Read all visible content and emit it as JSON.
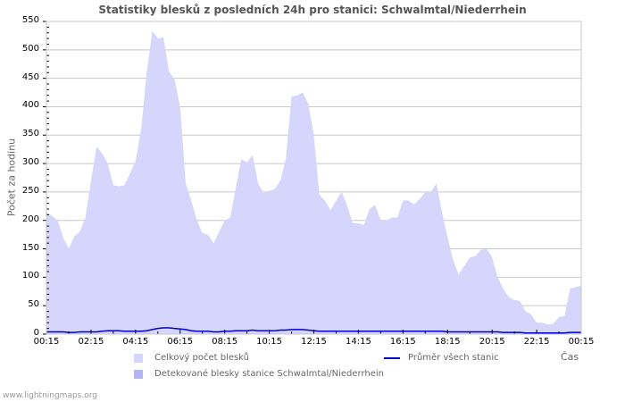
{
  "header": {
    "title": "Statistiky blesků z posledních 24h pro stanici: Schwalmtal/Niederrhein"
  },
  "footer": {
    "source": "www.lightningmaps.org"
  },
  "legend": {
    "total": "Celkový počet blesků",
    "detected": "Detekované blesky stanice Schwalmtal/Niederrhein",
    "average": "Průměr všech stanic"
  },
  "colors": {
    "total_fill": "#d6d6fc",
    "detected_fill": "#b4b4f5",
    "average_line": "#0000cc",
    "grid": "#c8c8c8"
  },
  "chart_data": {
    "type": "area",
    "title": "Statistiky blesků z posledních 24h pro stanici: Schwalmtal/Niederrhein",
    "xlabel": "Čas",
    "ylabel": "Počet za hodinu",
    "ylim": [
      0,
      550
    ],
    "yticks": [
      0,
      50,
      100,
      150,
      200,
      250,
      300,
      350,
      400,
      450,
      500,
      550
    ],
    "xticks": [
      "00:15",
      "02:15",
      "04:15",
      "06:15",
      "08:15",
      "10:15",
      "12:15",
      "14:15",
      "16:15",
      "18:15",
      "20:15",
      "22:15",
      "00:15"
    ],
    "grid": true,
    "legend_position": "bottom",
    "x_hours": [
      0,
      0.25,
      0.5,
      0.75,
      1.0,
      1.25,
      1.5,
      1.75,
      2.0,
      2.25,
      2.5,
      2.75,
      3.0,
      3.25,
      3.5,
      3.75,
      4.0,
      4.25,
      4.5,
      4.75,
      5.0,
      5.25,
      5.5,
      5.75,
      6.0,
      6.25,
      6.5,
      6.75,
      7.0,
      7.25,
      7.5,
      7.75,
      8.0,
      8.25,
      8.5,
      8.75,
      9.0,
      9.25,
      9.5,
      9.75,
      10.0,
      10.25,
      10.5,
      10.75,
      11.0,
      11.25,
      11.5,
      11.75,
      12.0,
      12.25,
      12.5,
      12.75,
      13.0,
      13.25,
      13.5,
      13.75,
      14.0,
      14.25,
      14.5,
      14.75,
      15.0,
      15.25,
      15.5,
      15.75,
      16.0,
      16.25,
      16.5,
      16.75,
      17.0,
      17.25,
      17.5,
      17.75,
      18.0,
      18.25,
      18.5,
      18.75,
      19.0,
      19.25,
      19.5,
      19.75,
      20.0,
      20.25,
      20.5,
      20.75,
      21.0,
      21.25,
      21.5,
      21.75,
      22.0,
      22.25,
      22.5,
      22.75,
      23.0,
      23.25,
      23.5,
      23.75,
      24.0
    ],
    "series": [
      {
        "name": "Celkový počet blesků",
        "type": "area",
        "values": [
          215,
          208,
          200,
          170,
          150,
          172,
          180,
          205,
          270,
          330,
          318,
          300,
          262,
          260,
          262,
          282,
          305,
          360,
          460,
          533,
          520,
          522,
          462,
          448,
          400,
          265,
          235,
          200,
          178,
          175,
          160,
          180,
          200,
          205,
          258,
          308,
          302,
          315,
          265,
          248,
          252,
          255,
          270,
          310,
          418,
          420,
          425,
          405,
          350,
          245,
          235,
          218,
          235,
          250,
          225,
          195,
          195,
          192,
          220,
          227,
          200,
          200,
          205,
          205,
          235,
          235,
          228,
          238,
          250,
          250,
          265,
          215,
          170,
          130,
          105,
          120,
          135,
          137,
          148,
          150,
          135,
          100,
          80,
          65,
          60,
          58,
          40,
          35,
          20,
          20,
          17,
          18,
          30,
          32,
          80,
          83,
          85
        ]
      },
      {
        "name": "Detekované blesky stanice Schwalmtal/Niederrhein",
        "type": "area",
        "values": [
          0,
          0,
          0,
          0,
          0,
          0,
          0,
          0,
          0,
          0,
          0,
          0,
          0,
          0,
          0,
          0,
          0,
          0,
          0,
          0,
          0,
          0,
          0,
          0,
          0,
          0,
          0,
          0,
          0,
          0,
          0,
          0,
          0,
          0,
          0,
          0,
          0,
          0,
          0,
          0,
          0,
          0,
          0,
          0,
          0,
          0,
          0,
          0,
          0,
          0,
          0,
          0,
          0,
          0,
          0,
          0,
          0,
          0,
          0,
          0,
          0,
          0,
          0,
          0,
          0,
          0,
          0,
          0,
          0,
          0,
          0,
          0,
          0,
          0,
          0,
          0,
          0,
          0,
          0,
          0,
          0,
          0,
          0,
          0,
          0,
          0,
          0,
          0,
          0,
          0,
          0,
          0,
          0,
          0,
          0,
          0,
          0
        ]
      },
      {
        "name": "Průměr všech stanic",
        "type": "line",
        "values": [
          4,
          4,
          4,
          4,
          3,
          3,
          4,
          4,
          4,
          4,
          5,
          6,
          6,
          6,
          5,
          5,
          5,
          5,
          6,
          8,
          10,
          11,
          11,
          10,
          9,
          8,
          6,
          5,
          5,
          5,
          4,
          4,
          5,
          5,
          6,
          6,
          6,
          7,
          6,
          6,
          6,
          6,
          7,
          7,
          8,
          8,
          8,
          7,
          6,
          5,
          5,
          5,
          5,
          5,
          5,
          5,
          5,
          5,
          5,
          5,
          5,
          5,
          5,
          5,
          5,
          5,
          5,
          5,
          5,
          5,
          5,
          5,
          4,
          4,
          4,
          4,
          4,
          4,
          4,
          4,
          4,
          4,
          3,
          3,
          3,
          3,
          2,
          2,
          2,
          2,
          2,
          2,
          2,
          2,
          3,
          3,
          3
        ]
      }
    ]
  }
}
